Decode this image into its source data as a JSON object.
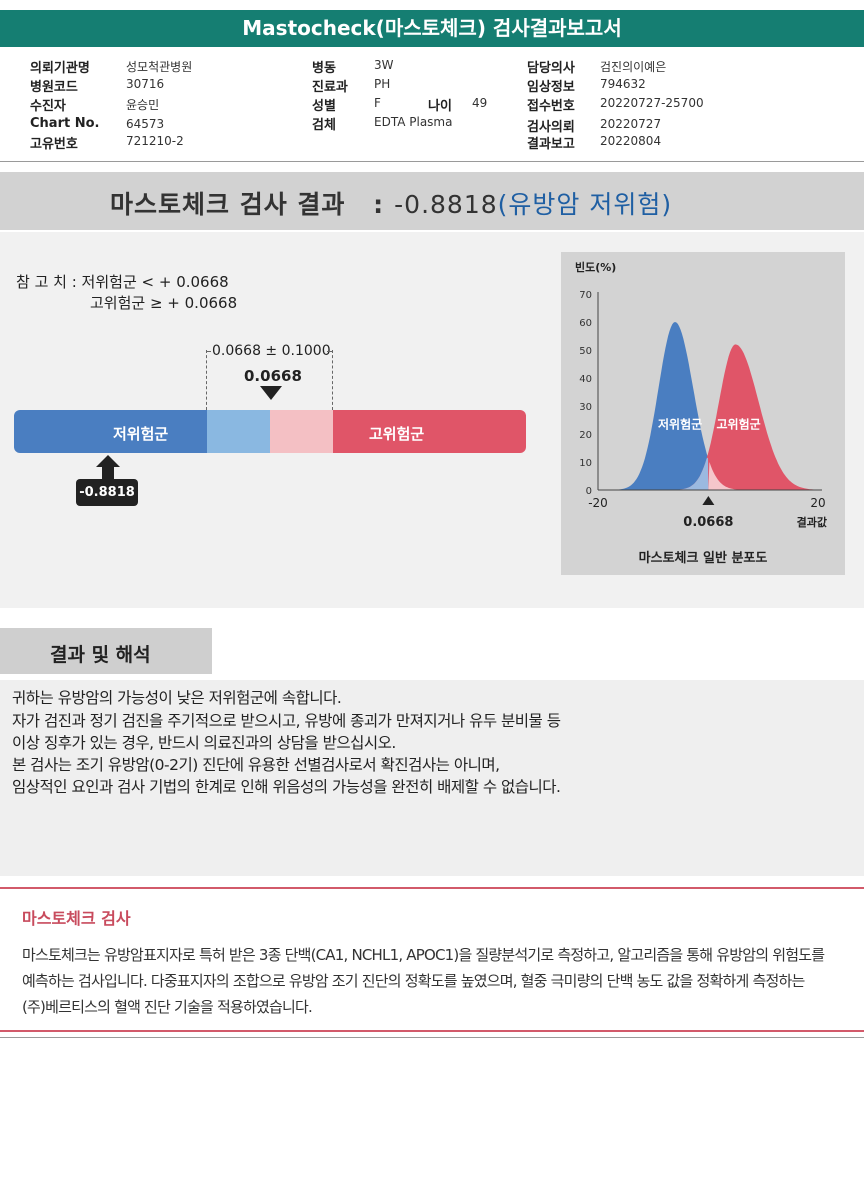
{
  "report": {
    "title": "Mastocheck(마스토체크) 검사결과보고서"
  },
  "info": {
    "col1": [
      {
        "label": "의뢰기관명",
        "value": "성모척관병원"
      },
      {
        "label": "병원코드",
        "value": "30716"
      },
      {
        "label": "수진자",
        "value": "윤승민"
      },
      {
        "label": "Chart No.",
        "value": "64573"
      },
      {
        "label": "고유번호",
        "value": "721210-2"
      }
    ],
    "col2": [
      {
        "label": "병동",
        "value": "3W"
      },
      {
        "label": "진료과",
        "value": "PH"
      },
      {
        "label": "성별",
        "value": "F"
      },
      {
        "label": "검체",
        "value": "EDTA Plasma"
      }
    ],
    "age": {
      "label": "나이",
      "value": "49"
    },
    "col3": [
      {
        "label": "담당의사",
        "value": "검진의이예은"
      },
      {
        "label": "임상정보",
        "value": "794632"
      },
      {
        "label": "접수번호",
        "value": "20220727-25700"
      },
      {
        "label": "검사의뢰",
        "value": "20220727"
      },
      {
        "label": "결과보고",
        "value": "20220804"
      }
    ]
  },
  "result": {
    "heading": "마스토체크 검사 결과",
    "colon": ":",
    "value": "-0.8818",
    "risk_open": "(",
    "risk": "유방암 저위험",
    "risk_close": ")"
  },
  "reference": {
    "prefix": "참 고 치 :",
    "low": "저위험군 < + 0.0668",
    "high": "고위험군 ≥ + 0.0668"
  },
  "scale": {
    "range_label": "0.0668 ± 0.1000",
    "cutoff_label": "0.0668",
    "low_label": "저위험군",
    "high_label": "고위험군",
    "patient_value": "-0.8818",
    "colors": {
      "low": "#4a7ec1",
      "low_light": "#8ab8e1",
      "high_light": "#f4c0c4",
      "high": "#e05568"
    }
  },
  "chart_data": {
    "type": "area",
    "title": "마스토체크 일반 분포도",
    "ylabel": "빈도(%)",
    "xlabel": "결과값",
    "xlim": [
      -20,
      20
    ],
    "ylim": [
      0,
      70
    ],
    "yticks": [
      0,
      10,
      20,
      30,
      40,
      50,
      60,
      70
    ],
    "xticks": [
      -20,
      20
    ],
    "cutoff": 0.0668,
    "cutoff_label": "0.0668",
    "series": [
      {
        "name": "저위험군",
        "color": "#4a7ec1",
        "peak_x": -6,
        "peak_y": 60
      },
      {
        "name": "고위험군",
        "color": "#e05568",
        "peak_x": 5,
        "peak_y": 52
      }
    ]
  },
  "interpretation": {
    "heading": "결과 및 해석",
    "lines": [
      "귀하는 유방암의 가능성이 낮은 저위험군에 속합니다.",
      "자가 검진과 정기 검진을 주기적으로 받으시고, 유방에 종괴가 만져지거나 유두 분비물 등",
      "이상 징후가 있는 경우, 반드시 의료진과의 상담을 받으십시오.",
      "본 검사는 조기 유방암(0-2기) 진단에 유용한 선별검사로서 확진검사는 아니며,",
      "임상적인 요인과 검사 기법의 한계로 인해 위음성의 가능성을 완전히 배제할 수 없습니다."
    ]
  },
  "about": {
    "heading": "마스토체크 검사",
    "lines": [
      "마스토체크는 유방암표지자로 특허 받은 3종 단백(CA1, NCHL1, APOC1)을 질량분석기로 측정하고, 알고리즘을 통해 유방암의 위험도를",
      "예측하는 검사입니다. 다중표지자의 조합으로 유방암 조기 진단의 정확도를 높였으며, 혈중 극미량의 단백 농도 값을 정확하게 측정하는",
      "(주)베르티스의 혈액 진단 기술을 적용하였습니다."
    ]
  }
}
